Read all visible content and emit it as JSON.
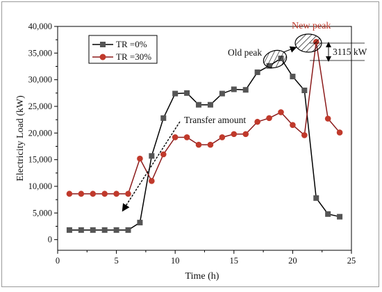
{
  "chart_data": {
    "type": "line",
    "title": "",
    "xlabel": "Time (h)",
    "ylabel": "Electricity Load (kW)",
    "xlim": [
      0,
      25
    ],
    "ylim": [
      -2000,
      40000
    ],
    "xticks": [
      0,
      5,
      10,
      15,
      20,
      25
    ],
    "yticks": [
      0,
      5000,
      10000,
      15000,
      20000,
      25000,
      30000,
      35000,
      40000
    ],
    "xtick_labels": [
      "0",
      "5",
      "10",
      "15",
      "20",
      "25"
    ],
    "ytick_labels": [
      "0",
      "5,000",
      "10,000",
      "15,000",
      "20,000",
      "25,000",
      "30,000",
      "35,000",
      "40,000"
    ],
    "legend_position": "top-left",
    "x": [
      1,
      2,
      3,
      4,
      5,
      6,
      7,
      8,
      9,
      10,
      11,
      12,
      13,
      14,
      15,
      16,
      17,
      18,
      19,
      20,
      21,
      22,
      23,
      24
    ],
    "series": [
      {
        "name": "TR =0%",
        "color": "#000000",
        "marker_color": "#555555",
        "marker": "square",
        "values": [
          1800,
          1800,
          1800,
          1800,
          1800,
          1800,
          3200,
          15700,
          22800,
          27400,
          27500,
          25300,
          25300,
          27400,
          28200,
          28100,
          31400,
          32600,
          34000,
          30600,
          28000,
          7800,
          4800,
          4300
        ]
      },
      {
        "name": "TR =30%",
        "color": "#8b1a1a",
        "marker_color": "#c0392b",
        "marker": "circle",
        "values": [
          8600,
          8600,
          8600,
          8600,
          8600,
          8600,
          15200,
          11000,
          16000,
          19200,
          19200,
          17800,
          17800,
          19200,
          19800,
          19800,
          22100,
          22800,
          23900,
          21500,
          19600,
          37100,
          22700,
          20100
        ]
      }
    ],
    "annotations": {
      "transfer": "Transfer amount",
      "old_peak": "Old peak",
      "new_peak": "New peak",
      "difference": "3115 kW"
    }
  }
}
